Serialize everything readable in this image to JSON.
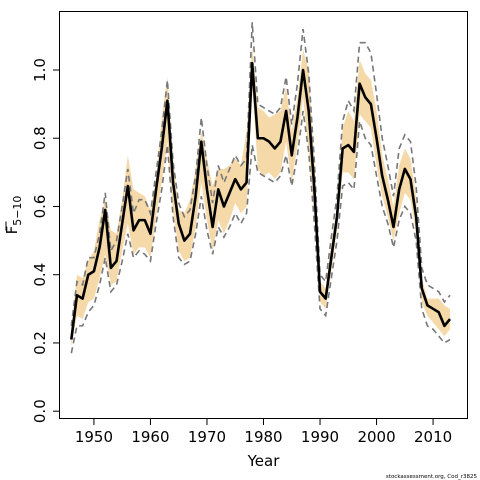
{
  "chart_data": {
    "type": "line",
    "xlabel": "Year",
    "ylabel_base": "F",
    "ylabel_sub": "5−10",
    "credit": "stockassessment.org, Cod_r3825",
    "xlim": [
      1944,
      2016
    ],
    "ylim": [
      -0.02,
      1.17
    ],
    "xticks": [
      1950,
      1960,
      1970,
      1980,
      1990,
      2000,
      2010
    ],
    "yticks": [
      0.0,
      0.2,
      0.4,
      0.6,
      0.8,
      1.0
    ],
    "ytick_labels": [
      "0.0",
      "0.2",
      "0.4",
      "0.6",
      "0.8",
      "1.0"
    ],
    "colors": {
      "band": "#f5d9a8",
      "line": "#000000",
      "dashed": "#777777",
      "frame": "#000000"
    },
    "x": [
      1946,
      1947,
      1948,
      1949,
      1950,
      1951,
      1952,
      1953,
      1954,
      1955,
      1956,
      1957,
      1958,
      1959,
      1960,
      1961,
      1962,
      1963,
      1964,
      1965,
      1966,
      1967,
      1968,
      1969,
      1970,
      1971,
      1972,
      1973,
      1974,
      1975,
      1976,
      1977,
      1978,
      1979,
      1980,
      1981,
      1982,
      1983,
      1984,
      1985,
      1986,
      1987,
      1988,
      1989,
      1990,
      1991,
      1992,
      1993,
      1994,
      1995,
      1996,
      1997,
      1998,
      1999,
      2000,
      2001,
      2002,
      2003,
      2004,
      2005,
      2006,
      2007,
      2008,
      2009,
      2010,
      2011,
      2012,
      2013
    ],
    "series": [
      {
        "role": "estimate",
        "values": [
          0.21,
          0.34,
          0.33,
          0.4,
          0.41,
          0.48,
          0.59,
          0.42,
          0.44,
          0.55,
          0.66,
          0.53,
          0.56,
          0.56,
          0.52,
          0.65,
          0.77,
          0.91,
          0.67,
          0.55,
          0.5,
          0.52,
          0.63,
          0.79,
          0.65,
          0.54,
          0.65,
          0.6,
          0.64,
          0.68,
          0.65,
          0.67,
          1.02,
          0.8,
          0.8,
          0.79,
          0.77,
          0.79,
          0.88,
          0.75,
          0.86,
          1.0,
          0.88,
          0.65,
          0.35,
          0.33,
          0.45,
          0.57,
          0.77,
          0.78,
          0.76,
          0.96,
          0.92,
          0.9,
          0.8,
          0.69,
          0.62,
          0.54,
          0.65,
          0.71,
          0.68,
          0.57,
          0.36,
          0.31,
          0.3,
          0.29,
          0.25,
          0.27
        ]
      },
      {
        "role": "upper_dashed",
        "values": [
          0.25,
          0.38,
          0.37,
          0.45,
          0.45,
          0.52,
          0.64,
          0.47,
          0.5,
          0.6,
          0.71,
          0.58,
          0.62,
          0.62,
          0.58,
          0.7,
          0.82,
          0.97,
          0.73,
          0.61,
          0.57,
          0.59,
          0.69,
          0.86,
          0.72,
          0.61,
          0.72,
          0.67,
          0.71,
          0.75,
          0.72,
          0.74,
          1.14,
          0.9,
          0.89,
          0.88,
          0.87,
          0.89,
          0.98,
          0.84,
          0.96,
          1.12,
          0.99,
          0.73,
          0.4,
          0.38,
          0.51,
          0.63,
          0.85,
          0.91,
          0.88,
          1.08,
          1.08,
          1.05,
          0.93,
          0.8,
          0.72,
          0.63,
          0.77,
          0.81,
          0.79,
          0.66,
          0.42,
          0.37,
          0.36,
          0.35,
          0.32,
          0.34
        ]
      },
      {
        "role": "lower_dashed",
        "values": [
          0.17,
          0.25,
          0.25,
          0.29,
          0.31,
          0.37,
          0.45,
          0.35,
          0.37,
          0.44,
          0.52,
          0.45,
          0.47,
          0.46,
          0.44,
          0.55,
          0.65,
          0.78,
          0.57,
          0.45,
          0.43,
          0.44,
          0.52,
          0.63,
          0.53,
          0.46,
          0.54,
          0.51,
          0.54,
          0.58,
          0.55,
          0.58,
          0.78,
          0.7,
          0.69,
          0.68,
          0.67,
          0.69,
          0.75,
          0.66,
          0.75,
          0.88,
          0.76,
          0.55,
          0.3,
          0.28,
          0.39,
          0.5,
          0.66,
          0.67,
          0.65,
          0.85,
          0.8,
          0.78,
          0.69,
          0.6,
          0.55,
          0.48,
          0.56,
          0.6,
          0.58,
          0.5,
          0.3,
          0.25,
          0.24,
          0.22,
          0.2,
          0.21
        ]
      },
      {
        "role": "upper_band",
        "values": [
          0.24,
          0.4,
          0.39,
          0.44,
          0.47,
          0.56,
          0.62,
          0.53,
          0.52,
          0.62,
          0.75,
          0.65,
          0.64,
          0.63,
          0.59,
          0.68,
          0.86,
          0.98,
          0.74,
          0.59,
          0.58,
          0.62,
          0.71,
          0.82,
          0.74,
          0.66,
          0.71,
          0.71,
          0.72,
          0.74,
          0.72,
          0.82,
          1.07,
          0.89,
          0.88,
          0.86,
          0.87,
          0.88,
          0.95,
          0.82,
          0.92,
          1.06,
          1.0,
          0.73,
          0.38,
          0.36,
          0.49,
          0.6,
          0.83,
          0.88,
          0.85,
          1.03,
          0.99,
          0.97,
          0.88,
          0.75,
          0.68,
          0.6,
          0.72,
          0.77,
          0.74,
          0.63,
          0.39,
          0.33,
          0.33,
          0.33,
          0.31,
          0.3
        ]
      },
      {
        "role": "lower_band",
        "values": [
          0.19,
          0.28,
          0.27,
          0.32,
          0.33,
          0.39,
          0.46,
          0.37,
          0.38,
          0.47,
          0.55,
          0.46,
          0.48,
          0.48,
          0.45,
          0.57,
          0.67,
          0.79,
          0.59,
          0.47,
          0.44,
          0.45,
          0.54,
          0.67,
          0.56,
          0.47,
          0.56,
          0.52,
          0.56,
          0.61,
          0.58,
          0.6,
          0.95,
          0.71,
          0.69,
          0.7,
          0.68,
          0.7,
          0.79,
          0.67,
          0.78,
          0.92,
          0.76,
          0.57,
          0.32,
          0.3,
          0.41,
          0.53,
          0.7,
          0.7,
          0.68,
          0.87,
          0.85,
          0.83,
          0.72,
          0.63,
          0.57,
          0.5,
          0.58,
          0.64,
          0.62,
          0.52,
          0.32,
          0.28,
          0.26,
          0.24,
          0.22,
          0.24
        ]
      }
    ]
  }
}
